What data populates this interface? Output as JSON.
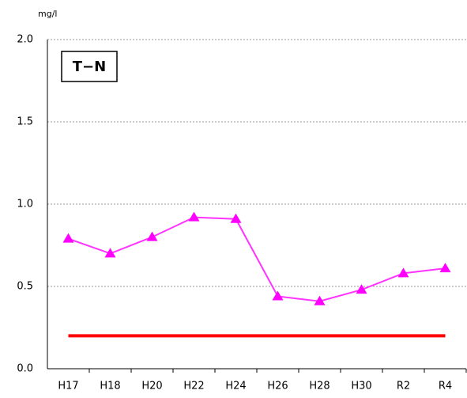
{
  "chart_data": {
    "type": "line",
    "title": "T−N",
    "y_label": "mg/l",
    "categories": [
      "H17",
      "H18",
      "H20",
      "H22",
      "H24",
      "H26",
      "H28",
      "H30",
      "R2",
      "R4"
    ],
    "series": [
      {
        "color": "#ff33ff",
        "marker": "triangle",
        "values": [
          0.79,
          0.7,
          0.8,
          0.92,
          0.91,
          0.44,
          0.41,
          0.48,
          0.58,
          0.61
        ]
      },
      {
        "color": "#ff0000",
        "values": [
          0.2,
          0.2,
          0.2,
          0.2,
          0.2,
          0.2,
          0.2,
          0.2,
          0.2,
          0.2
        ]
      }
    ],
    "ylim": [
      0,
      2
    ],
    "yticks": [
      {
        "value": 0,
        "label": "0.0"
      },
      {
        "value": 0.5,
        "label": "0.5"
      },
      {
        "value": 1,
        "label": "1.0"
      },
      {
        "value": 1.5,
        "label": "1.5"
      },
      {
        "value": 2,
        "label": "2.0"
      }
    ],
    "grid": true
  }
}
